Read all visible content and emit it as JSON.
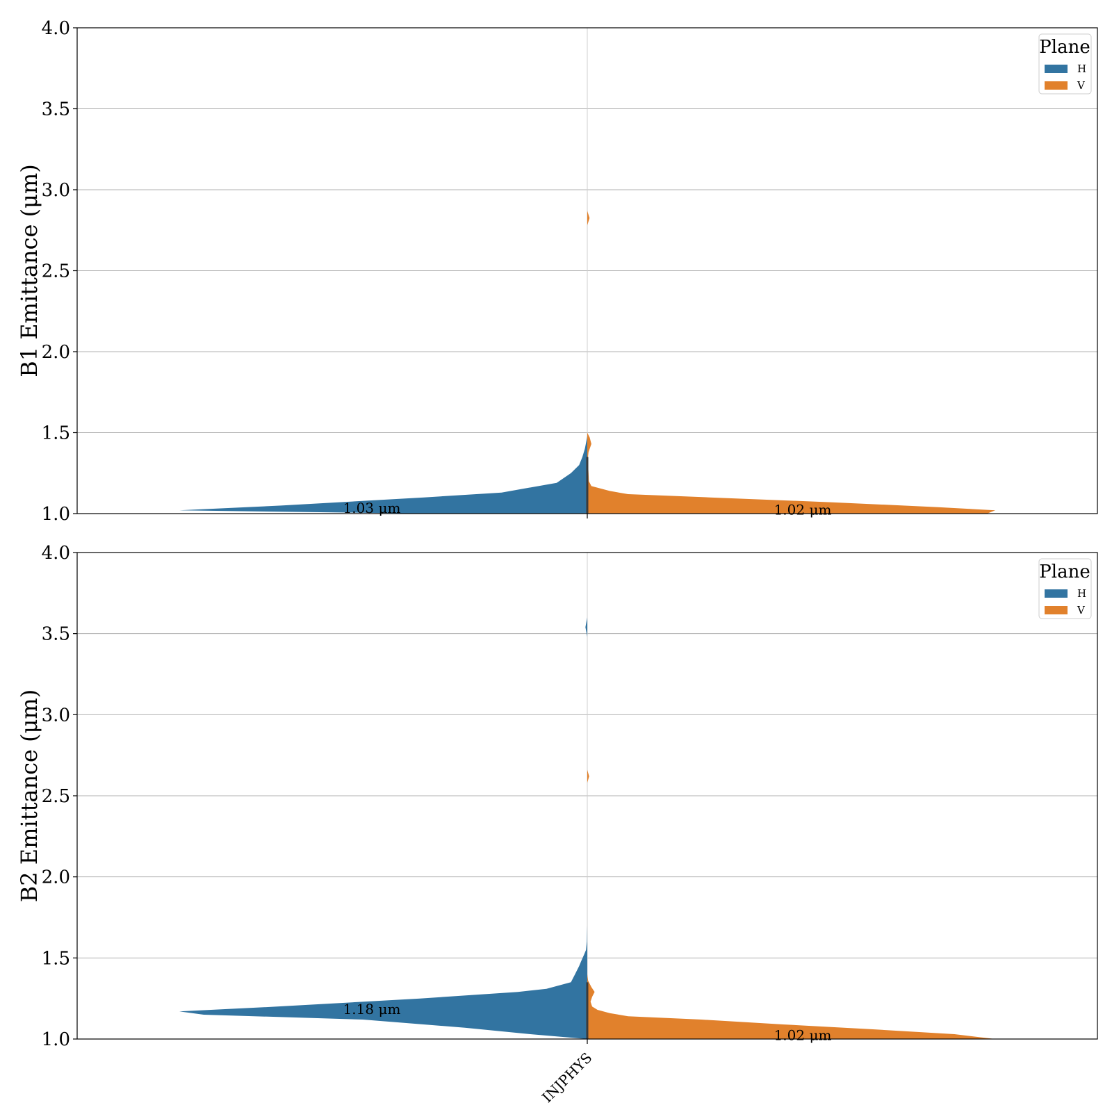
{
  "chart_data": [
    {
      "type": "violin",
      "ylabel": "B1 Emittance (μm)",
      "ylim": [
        1.0,
        4.0
      ],
      "yticks": [
        "1.0",
        "1.5",
        "2.0",
        "2.5",
        "3.0",
        "3.5",
        "4.0"
      ],
      "categories": [
        "INJPHYS"
      ],
      "show_xtick_labels": false,
      "grid": true,
      "legend": {
        "title": "Plane",
        "position": "top-right",
        "entries": [
          "H",
          "V"
        ]
      },
      "series": [
        {
          "name": "H",
          "color": "#3274a1",
          "side": "left",
          "annotation": "1.03 μm",
          "annotation_y": 1.03,
          "profile": [
            [
              1.0,
              0.4
            ],
            [
              1.02,
              1.0
            ],
            [
              1.05,
              0.75
            ],
            [
              1.1,
              0.4
            ],
            [
              1.13,
              0.21
            ],
            [
              1.19,
              0.075
            ],
            [
              1.25,
              0.04
            ],
            [
              1.3,
              0.02
            ],
            [
              1.35,
              0.012
            ],
            [
              1.4,
              0.006
            ],
            [
              1.45,
              0.002
            ],
            [
              1.48,
              0.0
            ]
          ]
        },
        {
          "name": "V",
          "color": "#e1812c",
          "side": "right",
          "annotation": "1.02 μm",
          "annotation_y": 1.02,
          "profile": [
            [
              1.0,
              0.98
            ],
            [
              1.02,
              1.0
            ],
            [
              1.04,
              0.86
            ],
            [
              1.07,
              0.6
            ],
            [
              1.1,
              0.3
            ],
            [
              1.12,
              0.1
            ],
            [
              1.14,
              0.055
            ],
            [
              1.17,
              0.01
            ],
            [
              1.2,
              0.004
            ],
            [
              1.25,
              0.003
            ],
            [
              1.3,
              0.002
            ],
            [
              1.33,
              0.001
            ],
            [
              1.38,
              0.003
            ],
            [
              1.43,
              0.01
            ],
            [
              1.47,
              0.006
            ],
            [
              1.5,
              0.0
            ]
          ],
          "outliers": [
            [
              2.78,
              2.87,
              0.003
            ]
          ]
        }
      ]
    },
    {
      "type": "violin",
      "ylabel": "B2 Emittance (μm)",
      "ylim": [
        1.0,
        4.0
      ],
      "yticks": [
        "1.0",
        "1.5",
        "2.0",
        "2.5",
        "3.0",
        "3.5",
        "4.0"
      ],
      "categories": [
        "INJPHYS"
      ],
      "show_xtick_labels": true,
      "grid": true,
      "legend": {
        "title": "Plane",
        "position": "top-right",
        "entries": [
          "H",
          "V"
        ]
      },
      "series": [
        {
          "name": "H",
          "color": "#3274a1",
          "side": "left",
          "annotation": "1.18 μm",
          "annotation_y": 1.18,
          "profile": [
            [
              1.0,
              0.0
            ],
            [
              1.03,
              0.14
            ],
            [
              1.07,
              0.3
            ],
            [
              1.12,
              0.55
            ],
            [
              1.15,
              0.94
            ],
            [
              1.17,
              1.0
            ],
            [
              1.2,
              0.76
            ],
            [
              1.25,
              0.41
            ],
            [
              1.29,
              0.17
            ],
            [
              1.31,
              0.1
            ],
            [
              1.35,
              0.04
            ],
            [
              1.4,
              0.03
            ],
            [
              1.45,
              0.02
            ],
            [
              1.48,
              0.015
            ],
            [
              1.52,
              0.008
            ],
            [
              1.55,
              0.003
            ],
            [
              1.6,
              0.001
            ],
            [
              1.7,
              0.0
            ]
          ],
          "outliers": [
            [
              3.48,
              3.6,
              0.002
            ]
          ]
        },
        {
          "name": "V",
          "color": "#e1812c",
          "side": "right",
          "annotation": "1.02 μm",
          "annotation_y": 1.02,
          "profile": [
            [
              1.0,
              1.0
            ],
            [
              1.03,
              0.9
            ],
            [
              1.06,
              0.7
            ],
            [
              1.09,
              0.48
            ],
            [
              1.12,
              0.28
            ],
            [
              1.14,
              0.1
            ],
            [
              1.16,
              0.055
            ],
            [
              1.18,
              0.025
            ],
            [
              1.2,
              0.012
            ],
            [
              1.23,
              0.008
            ],
            [
              1.26,
              0.012
            ],
            [
              1.29,
              0.018
            ],
            [
              1.32,
              0.01
            ],
            [
              1.36,
              0.002
            ],
            [
              1.4,
              0.0
            ]
          ],
          "outliers": [
            [
              2.58,
              2.66,
              0.002
            ]
          ]
        }
      ]
    }
  ]
}
